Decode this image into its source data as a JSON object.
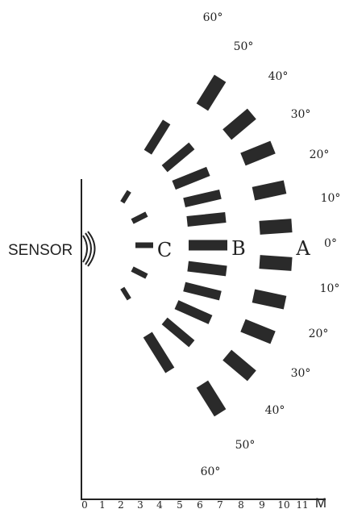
{
  "sensor_label": "SENSOR",
  "zones": {
    "a": "A",
    "b": "B",
    "c": "C"
  },
  "angles_upper": [
    "60°",
    "50°",
    "40°",
    "30°",
    "20°",
    "10°"
  ],
  "angle_center": "0°",
  "angles_lower": [
    "10°",
    "20°",
    "30°",
    "40°",
    "50°",
    "60°"
  ],
  "distance_ticks": [
    "0",
    "1",
    "2",
    "3",
    "4",
    "5",
    "6",
    "7",
    "8",
    "9",
    "10",
    "11"
  ],
  "distance_unit": "M",
  "colors": {
    "ink": "#222222",
    "zone_fill": "#2a2a2a"
  }
}
